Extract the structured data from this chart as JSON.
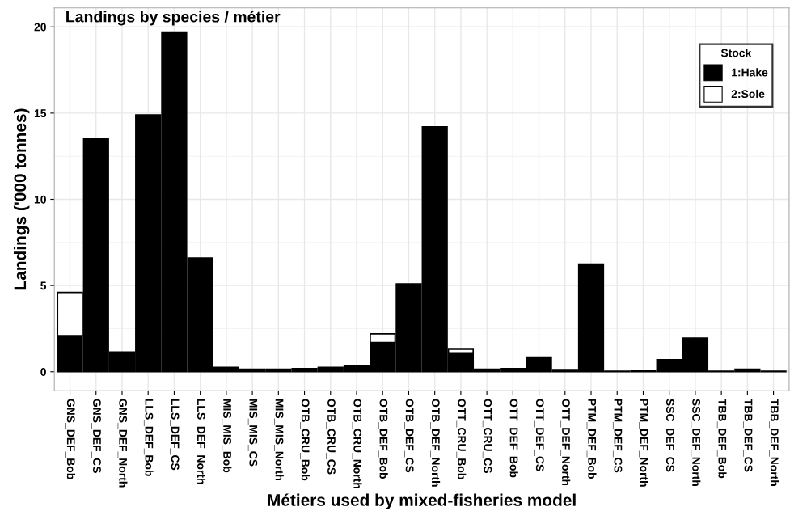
{
  "chart_data": {
    "type": "bar",
    "title": "Landings by species / métier",
    "xlabel": "Métiers used by mixed-fisheries model",
    "ylabel": "Landings ('000 tonnes)",
    "legend_title": "Stock",
    "categories": [
      "GNS_DEF_Bob",
      "GNS_DEF_CS",
      "GNS_DEF_North",
      "LLS_DEF_Bob",
      "LLS_DEF_CS",
      "LLS_DEF_North",
      "MIS_MIS_Bob",
      "MIS_MIS_CS",
      "MIS_MIS_North",
      "OTB_CRU_Bob",
      "OTB_CRU_CS",
      "OTB_CRU_North",
      "OTB_DEF_Bob",
      "OTB_DEF_CS",
      "OTB_DEF_North",
      "OTT_CRU_Bob",
      "OTT_CRU_CS",
      "OTT_DEF_Bob",
      "OTT_DEF_CS",
      "OTT_DEF_North",
      "PTM_DEF_Bob",
      "PTM_DEF_CS",
      "PTM_DEF_North",
      "SSC_DEF_CS",
      "SSC_DEF_North",
      "TBB_DEF_Bob",
      "TBB_DEF_CS",
      "TBB_DEF_North"
    ],
    "stacked": true,
    "series": [
      {
        "name": "1:Hake",
        "color": "#000000",
        "values": [
          2.1,
          13.5,
          1.15,
          14.9,
          19.7,
          6.6,
          0.25,
          0.15,
          0.15,
          0.18,
          0.25,
          0.35,
          1.7,
          5.1,
          14.2,
          1.1,
          0.15,
          0.1,
          0.85,
          0.12,
          6.25,
          0.03,
          0.05,
          0.7,
          1.95,
          0.03,
          0.15,
          0.03
        ]
      },
      {
        "name": "2:Sole",
        "color": "#ffffff",
        "values": [
          2.5,
          null,
          null,
          null,
          null,
          null,
          null,
          null,
          null,
          null,
          null,
          null,
          0.5,
          null,
          null,
          0.2,
          null,
          0.08,
          null,
          null,
          null,
          null,
          null,
          null,
          null,
          null,
          null,
          null
        ]
      }
    ],
    "ylim": [
      -1.1,
      21.1
    ],
    "yticks": [
      0,
      5,
      10,
      15,
      20
    ],
    "grid": true,
    "legend": "top right"
  }
}
